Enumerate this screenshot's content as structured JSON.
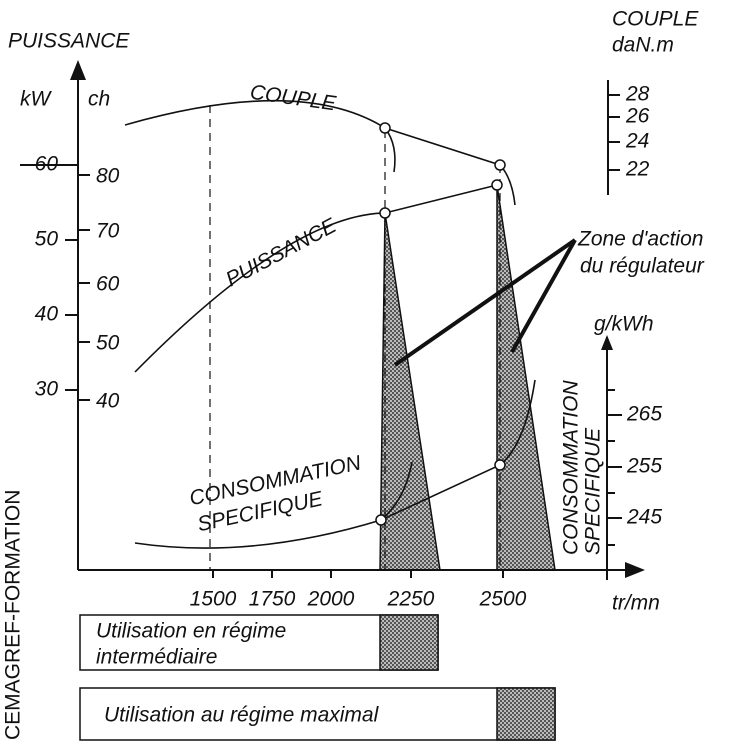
{
  "left_axis": {
    "title": "PUISSANCE",
    "unit_kw": "kW",
    "unit_ch": "ch",
    "kw_ticks": [
      "60",
      "50",
      "40",
      "30"
    ],
    "ch_ticks": [
      "80",
      "70",
      "60",
      "50",
      "40"
    ]
  },
  "couple_axis": {
    "title": "COUPLE",
    "unit": "daN.m",
    "ticks": [
      "28",
      "26",
      "24",
      "22"
    ]
  },
  "consumption_axis": {
    "unit": "g/kWh",
    "title_line1": "CONSOMMATION",
    "title_line2": "SPECIFIQUE",
    "ticks": [
      "265",
      "255",
      "245"
    ]
  },
  "x_axis": {
    "unit": "tr/mn",
    "ticks": [
      "1500",
      "1750",
      "2000",
      "2250",
      "2500"
    ]
  },
  "curves": {
    "couple": "COUPLE",
    "puissance": "PUISSANCE",
    "consumption_line1": "CONSOMMATION",
    "consumption_line2": "SPECIFIQUE"
  },
  "annotation": {
    "line1": "Zone d'action",
    "line2": "du régulateur"
  },
  "legend": {
    "intermediate_line1": "Utilisation en régime",
    "intermediate_line2": "intermédiaire",
    "maximal": "Utilisation au régime maximal"
  },
  "credit": "CEMAGREF-FORMATION"
}
